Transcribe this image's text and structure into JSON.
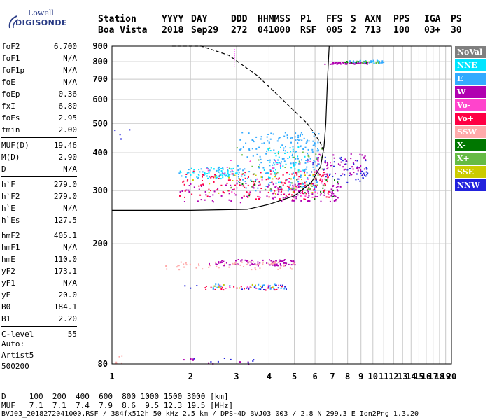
{
  "logo": {
    "line1": "Lowell",
    "line2": "DIGISONDE"
  },
  "header": {
    "row1": [
      "Station",
      "YYYY",
      "DAY",
      "DDD",
      "HHMMSS",
      "P1",
      "FFS",
      "S",
      "AXN",
      "PPS",
      "IGA",
      "PS"
    ],
    "row2": [
      "Boa Vista",
      "2018",
      "Sep29",
      "272",
      "041000",
      "RSF",
      "005",
      "2",
      "713",
      "100",
      "03+",
      "30"
    ]
  },
  "params": {
    "group1": [
      {
        "k": "foF2",
        "v": "6.700"
      },
      {
        "k": "foF1",
        "v": "N/A"
      },
      {
        "k": "foF1p",
        "v": "N/A"
      },
      {
        "k": "foE",
        "v": "N/A"
      },
      {
        "k": "foEp",
        "v": "0.36"
      },
      {
        "k": "fxI",
        "v": "6.80"
      },
      {
        "k": "foEs",
        "v": "2.95"
      },
      {
        "k": "fmin",
        "v": "2.00"
      }
    ],
    "group2": [
      {
        "k": "MUF(D)",
        "v": "19.46"
      },
      {
        "k": "M(D)",
        "v": "2.90"
      },
      {
        "k": "D",
        "v": "N/A"
      }
    ],
    "group3": [
      {
        "k": "h`F",
        "v": "279.0"
      },
      {
        "k": "h`F2",
        "v": "279.0"
      },
      {
        "k": "h`E",
        "v": "N/A"
      },
      {
        "k": "h`Es",
        "v": "127.5"
      }
    ],
    "group4": [
      {
        "k": "hmF2",
        "v": "405.1"
      },
      {
        "k": "hmF1",
        "v": "N/A"
      },
      {
        "k": "hmE",
        "v": "110.0"
      },
      {
        "k": "yF2",
        "v": "173.1"
      },
      {
        "k": "yF1",
        "v": "N/A"
      },
      {
        "k": "yE",
        "v": "20.0"
      },
      {
        "k": "B0",
        "v": "184.1"
      },
      {
        "k": "B1",
        "v": "2.20"
      }
    ],
    "group5": [
      {
        "k": "C-level",
        "v": "55"
      }
    ]
  },
  "auto": {
    "line1": "Auto:",
    "line2": "Artist5",
    "line3": "500200"
  },
  "legend": [
    {
      "label": "NoVal",
      "color": "#7f7f7f"
    },
    {
      "label": "NNE",
      "color": "#00e5ff"
    },
    {
      "label": "E",
      "color": "#33aaff"
    },
    {
      "label": "W",
      "color": "#b000b0"
    },
    {
      "label": "Vo-",
      "color": "#ff44cc"
    },
    {
      "label": "Vo+",
      "color": "#ff0044"
    },
    {
      "label": "SSW",
      "color": "#ffaaaa"
    },
    {
      "label": "X-",
      "color": "#007700"
    },
    {
      "label": "X+",
      "color": "#66bb44"
    },
    {
      "label": "SSE",
      "color": "#cccc00"
    },
    {
      "label": "NNW",
      "color": "#2222dd"
    }
  ],
  "footer": {
    "d_row": "D     100  200  400  600  800 1000 1500 3000 [km]",
    "muf_row": "MUF   7.1  7.1  7.4  7.9  8.6  9.5 12.3 19.5 [MHz]",
    "file_row": "BVJ03_2018272041000.RSF / 384fx512h 50 kHz 2.5 km / DPS-4D BVJ03 003 / 2.8 N 299.3 E Ion2Png 1.3.20"
  },
  "chart_data": {
    "type": "scatter",
    "title": "",
    "xlabel": "",
    "ylabel": "",
    "xlim": [
      1,
      20
    ],
    "ylim": [
      80,
      900
    ],
    "x_ticks": [
      1,
      2,
      3,
      4,
      5,
      6,
      7,
      8,
      9,
      10,
      11,
      12,
      13,
      14,
      15,
      16,
      17,
      18,
      19,
      20
    ],
    "y_ticks": [
      80,
      200,
      300,
      400,
      500,
      600,
      700,
      800,
      900
    ],
    "y_scale": "log",
    "grid": true,
    "legend_position": "right",
    "series": [
      {
        "name": "NNE",
        "color": "#00e5ff",
        "clusters": [
          {
            "x": [
              1.8,
              3.0
            ],
            "y": [
              330,
              360
            ],
            "n": 50
          },
          {
            "x": [
              3.8,
              5.5
            ],
            "y": [
              320,
              420
            ],
            "n": 45
          },
          {
            "x": [
              8.5,
              10.5
            ],
            "y": [
              795,
              810
            ],
            "n": 15
          }
        ]
      },
      {
        "name": "E",
        "color": "#33aaff",
        "clusters": [
          {
            "x": [
              3.0,
              6.2
            ],
            "y": [
              300,
              470
            ],
            "n": 220
          },
          {
            "x": [
              1.8,
              3.2
            ],
            "y": [
              330,
              360
            ],
            "n": 40
          },
          {
            "x": [
              2.4,
              4.8
            ],
            "y": [
              142,
              148
            ],
            "n": 30
          },
          {
            "x": [
              8.0,
              11.0
            ],
            "y": [
              792,
              812
            ],
            "n": 40
          }
        ]
      },
      {
        "name": "W",
        "color": "#b000b0",
        "clusters": [
          {
            "x": [
              1.8,
              7.5
            ],
            "y": [
              275,
              320
            ],
            "n": 140
          },
          {
            "x": [
              6.0,
              9.5
            ],
            "y": [
              340,
              400
            ],
            "n": 60
          },
          {
            "x": [
              2.3,
              5.0
            ],
            "y": [
              170,
              178
            ],
            "n": 80
          },
          {
            "x": [
              6.5,
              9.5
            ],
            "y": [
              788,
              800
            ],
            "n": 50
          },
          {
            "x": [
              1.8,
              3.5
            ],
            "y": [
              80,
              84
            ],
            "n": 10
          }
        ]
      },
      {
        "name": "Vo-",
        "color": "#ff44cc",
        "clusters": [
          {
            "x": [
              2.0,
              7.0
            ],
            "y": [
              285,
              380
            ],
            "n": 50
          },
          {
            "x": [
              2.5,
              4.5
            ],
            "y": [
              143,
              147
            ],
            "n": 10
          }
        ]
      },
      {
        "name": "Vo+",
        "color": "#ff0044",
        "clusters": [
          {
            "x": [
              1.8,
              6.8
            ],
            "y": [
              280,
              350
            ],
            "n": 160
          },
          {
            "x": [
              2.0,
              4.5
            ],
            "y": [
              141,
              146
            ],
            "n": 20
          }
        ]
      },
      {
        "name": "SSW",
        "color": "#ffaaaa",
        "clusters": [
          {
            "x": [
              1.6,
              5.0
            ],
            "y": [
              165,
              175
            ],
            "n": 60
          },
          {
            "x": [
              1.0,
              1.1
            ],
            "y": [
              80,
              86
            ],
            "n": 6
          }
        ]
      },
      {
        "name": "X-",
        "color": "#007700",
        "clusters": [
          {
            "x": [
              3.0,
              7.5
            ],
            "y": [
              280,
              330
            ],
            "n": 20
          },
          {
            "x": [
              7.5,
              9.5
            ],
            "y": [
              792,
              805
            ],
            "n": 10
          }
        ]
      },
      {
        "name": "X+",
        "color": "#66bb44",
        "clusters": [
          {
            "x": [
              2.5,
              6.5
            ],
            "y": [
              300,
              420
            ],
            "n": 40
          },
          {
            "x": [
              8.5,
              10.5
            ],
            "y": [
              795,
              808
            ],
            "n": 10
          }
        ]
      },
      {
        "name": "SSE",
        "color": "#cccc00",
        "clusters": [
          {
            "x": [
              2.0,
              6.0
            ],
            "y": [
              290,
              340
            ],
            "n": 25
          },
          {
            "x": [
              2.3,
              4.5
            ],
            "y": [
              142,
              147
            ],
            "n": 10
          }
        ]
      },
      {
        "name": "NNW",
        "color": "#2222dd",
        "clusters": [
          {
            "x": [
              5.5,
              9.5
            ],
            "y": [
              320,
              390
            ],
            "n": 50
          },
          {
            "x": [
              1.8,
              4.8
            ],
            "y": [
              141,
              147
            ],
            "n": 20
          },
          {
            "x": [
              1.0,
              1.2
            ],
            "y": [
              440,
              500
            ],
            "n": 4
          },
          {
            "x": [
              2.0,
              3.5
            ],
            "y": [
              80,
              84
            ],
            "n": 8
          }
        ]
      }
    ],
    "curves": [
      {
        "name": "profile",
        "style": "solid",
        "x": [
          1.0,
          2.0,
          3.3,
          4.0,
          5.0,
          5.8,
          6.3,
          6.5,
          6.6,
          6.7,
          6.8
        ],
        "y": [
          258,
          258,
          260,
          270,
          288,
          318,
          360,
          420,
          500,
          700,
          900
        ]
      },
      {
        "name": "profile-upper",
        "style": "dashed",
        "x": [
          1.7,
          2.2,
          2.8,
          3.6,
          4.5,
          5.1,
          5.6,
          5.9,
          6.3,
          6.5
        ],
        "y": [
          900,
          900,
          840,
          720,
          600,
          540,
          500,
          470,
          430,
          400
        ]
      }
    ],
    "markers": [
      {
        "name": "foEs-marker",
        "color": "#ff00ff",
        "x": 2.95,
        "y": [
          770,
          890
        ]
      }
    ]
  }
}
